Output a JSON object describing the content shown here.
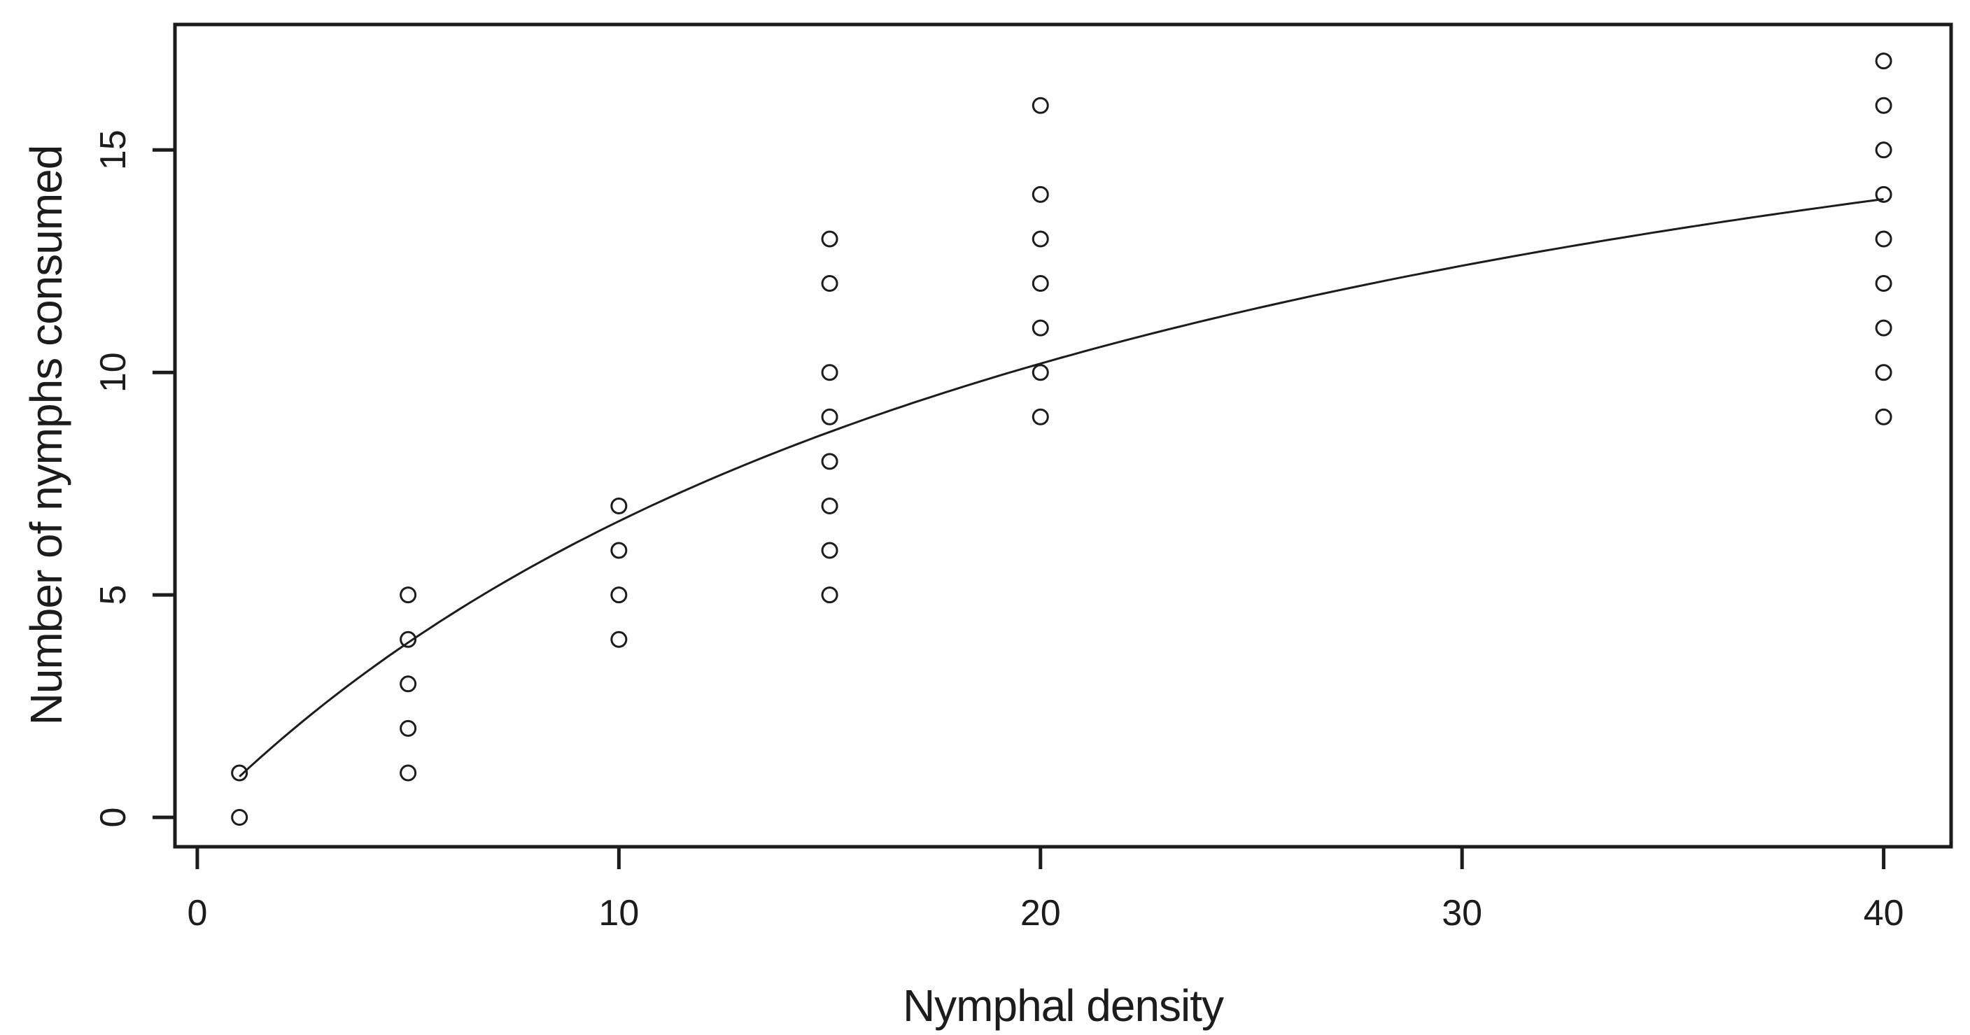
{
  "figure": {
    "background_color": "#ffffff",
    "foreground_color": "#1c1c1c"
  },
  "chart_data": {
    "type": "scatter",
    "title": "",
    "xlabel": "Nymphal density",
    "ylabel": "Number of nymphs consumed",
    "x_ticks": [
      0,
      10,
      20,
      30,
      40
    ],
    "x_tick_labels": [
      "0",
      "10",
      "20",
      "30",
      "40"
    ],
    "y_ticks": [
      0,
      5,
      10,
      15
    ],
    "y_tick_labels": [
      "0",
      "5",
      "10",
      "15"
    ],
    "xlim": [
      -0.53,
      41.6
    ],
    "ylim": [
      -0.66,
      17.82
    ],
    "grid": false,
    "legend": null,
    "marker": "open-circle",
    "marker_radius_px": 10.5,
    "color": "#1c1c1c",
    "points": [
      {
        "x": 1,
        "y": [
          0,
          1
        ]
      },
      {
        "x": 5,
        "y": [
          1,
          2,
          3,
          4,
          5
        ]
      },
      {
        "x": 10,
        "y": [
          4,
          5,
          6,
          7
        ]
      },
      {
        "x": 15,
        "y": [
          5,
          6,
          7,
          8,
          9,
          10,
          12,
          13
        ]
      },
      {
        "x": 20,
        "y": [
          9,
          10,
          11,
          12,
          13,
          14,
          16
        ]
      },
      {
        "x": 40,
        "y": [
          9,
          10,
          11,
          12,
          13,
          14,
          15,
          16,
          17
        ]
      }
    ],
    "fitted_curve": {
      "model": "saturating functional-response curve",
      "equation": "y = a*x / (b + x)",
      "a": 21.8,
      "b": 22.75,
      "x_range": [
        1,
        40
      ]
    }
  }
}
